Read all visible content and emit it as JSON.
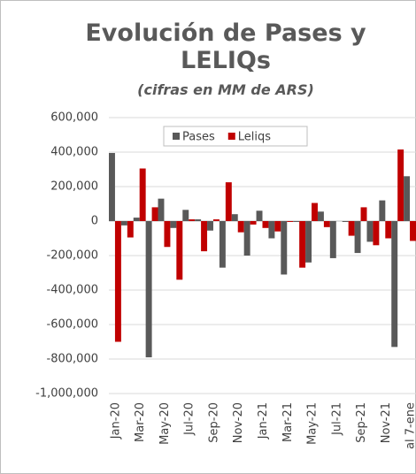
{
  "chart_data": {
    "type": "bar",
    "title": "Evolución de Pases y LELIQs",
    "subtitle": "(cifras en MM de ARS)",
    "categories": [
      "Jan-20",
      null,
      "Mar-20",
      null,
      "May-20",
      null,
      "Jul-20",
      null,
      "Sep-20",
      null,
      "Nov-20",
      null,
      "Jan-21",
      null,
      "Mar-21",
      null,
      "May-21",
      null,
      "Jul-21",
      null,
      "Sep-21",
      null,
      "Nov-21",
      null,
      "al 7-ene"
    ],
    "series": [
      {
        "name": "Pases",
        "color": "#595959",
        "values": [
          395000,
          -25000,
          20000,
          -790000,
          130000,
          -40000,
          65000,
          10000,
          -55000,
          -270000,
          40000,
          -200000,
          60000,
          -100000,
          -310000,
          -5000,
          -240000,
          55000,
          -215000,
          -5000,
          -185000,
          -120000,
          120000,
          -730000,
          260000
        ]
      },
      {
        "name": "Leliqs",
        "color": "#c00000",
        "values": [
          -700000,
          -95000,
          305000,
          80000,
          -150000,
          -340000,
          10000,
          -175000,
          10000,
          225000,
          -65000,
          -20000,
          -40000,
          -60000,
          -5000,
          -270000,
          105000,
          -35000,
          0,
          -85000,
          80000,
          -140000,
          -100000,
          415000,
          -115000
        ]
      }
    ],
    "ylim": [
      -1000000,
      600000
    ],
    "yticks": [
      {
        "value": -1000000,
        "label": "-1,000,000"
      },
      {
        "value": -800000,
        "label": "-800,000"
      },
      {
        "value": -600000,
        "label": "-600,000"
      },
      {
        "value": -400000,
        "label": "-400,000"
      },
      {
        "value": -200000,
        "label": "-200,000"
      },
      0,
      {
        "value": 200000,
        "label": "200,000"
      },
      {
        "value": 400000,
        "label": "400,000"
      },
      {
        "value": 600000,
        "label": "600,000"
      }
    ],
    "grid": true,
    "legend": "top"
  }
}
